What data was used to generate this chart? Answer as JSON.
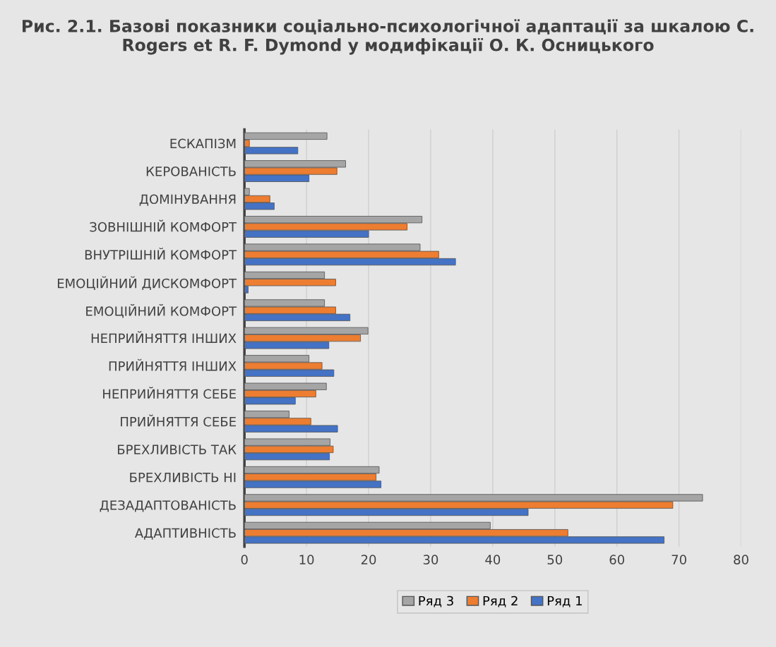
{
  "chart_data": {
    "type": "bar",
    "orientation": "horizontal",
    "title": "Рис. 2.1. Базові показники соціально-психологічної адаптації за шкалою C. Rogers et R. F. Dymond у модифікації О. К. Осницького",
    "categories": [
      "ЕСКАПІЗМ",
      "КЕРОВАНІСТЬ",
      "ДОМІНУВАННЯ",
      "ЗОВНІШНІЙ КОМФОРТ",
      "ВНУТРІШНІЙ КОМФОРТ",
      "ЕМОЦІЙНИЙ ДИСКОМФОРТ",
      "ЕМОЦІЙНИЙ КОМФОРТ",
      "НЕПРИЙНЯТТЯ ІНШИХ",
      "ПРИЙНЯТТЯ ІНШИХ",
      "НЕПРИЙНЯТТЯ СЕБЕ",
      "ПРИЙНЯТТЯ СЕБЕ",
      "БРЕХЛИВІСТЬ ТАК",
      "БРЕХЛИВІСТЬ НІ",
      "ДЕЗАДАПТОВАНІСТЬ",
      "АДАПТИВНІСТЬ"
    ],
    "series": [
      {
        "name": "Ряд 3",
        "color": "#a5a5a5",
        "values": [
          13.3,
          16.3,
          0.8,
          28.6,
          28.3,
          12.9,
          12.9,
          19.9,
          10.4,
          13.2,
          7.2,
          13.8,
          21.7,
          73.8,
          39.6
        ]
      },
      {
        "name": "Ряд 2",
        "color": "#ed7d31",
        "values": [
          0.8,
          14.9,
          4.1,
          26.2,
          31.3,
          14.7,
          14.7,
          18.7,
          12.5,
          11.5,
          10.7,
          14.3,
          21.2,
          69.0,
          52.1
        ]
      },
      {
        "name": "Ряд 1",
        "color": "#4472c4",
        "values": [
          8.6,
          10.4,
          4.8,
          20.0,
          34.0,
          0.6,
          17.0,
          13.6,
          14.4,
          8.2,
          15.0,
          13.7,
          22.0,
          45.7,
          67.6
        ]
      }
    ],
    "xlim": [
      0,
      80
    ],
    "xticks": [
      0,
      10,
      20,
      30,
      40,
      50,
      60,
      70,
      80
    ],
    "grid": "x",
    "legend": "bottom"
  }
}
